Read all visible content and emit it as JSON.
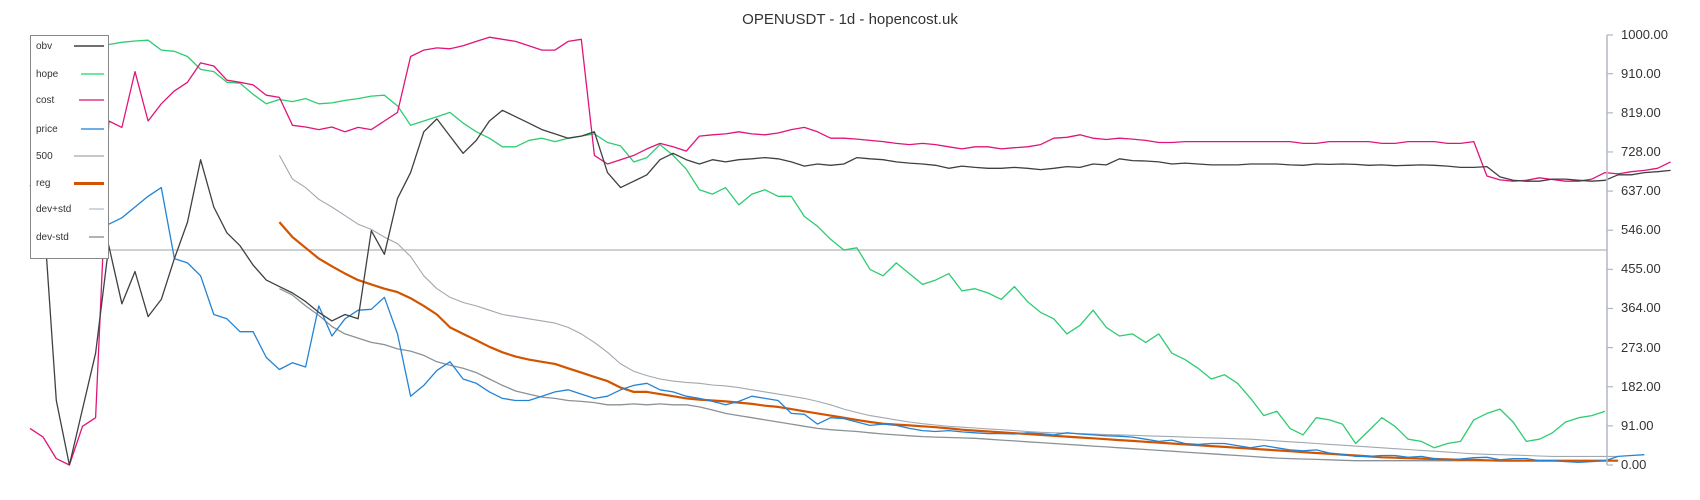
{
  "title": "OPENUSDT - 1d - hopencost.uk",
  "colors": {
    "obv": "#404040",
    "hope": "#2ecc71",
    "cost": "#e0157a",
    "price": "#2583d6",
    "500": "#c0c0c0",
    "reg": "#d35400",
    "dev_plus_std": "#a0a8b0",
    "dev_minus_std": "#8a9298",
    "axis": "#b0b8bf"
  },
  "legend": [
    {
      "key": "obv",
      "label": "obv",
      "color": "#707070",
      "width": 1.5,
      "line": 50
    },
    {
      "key": "hope",
      "label": "hope",
      "color": "#6ee7a0",
      "width": 2,
      "line": 38
    },
    {
      "key": "cost",
      "label": "cost",
      "color": "#e86aa8",
      "width": 2,
      "line": 42
    },
    {
      "key": "price",
      "label": "price",
      "color": "#6eaee8",
      "width": 2,
      "line": 38
    },
    {
      "key": "500",
      "label": "500",
      "color": "#c8c8c8",
      "width": 2,
      "line": 50
    },
    {
      "key": "reg",
      "label": "reg",
      "color": "#d35400",
      "width": 2.5,
      "line": 50
    },
    {
      "key": "dev_plus_std",
      "label": "dev+std",
      "color": "#d0d6da",
      "width": 2,
      "line": 25
    },
    {
      "key": "dev_minus_std",
      "label": "dev-std",
      "color": "#aab4ba",
      "width": 2,
      "line": 25
    }
  ],
  "axis": {
    "y_ticks": [
      "1000.00",
      "910.00",
      "819.00",
      "728.00",
      "637.00",
      "546.00",
      "455.00",
      "364.00",
      "273.00",
      "182.00",
      "91.00",
      "0.00"
    ],
    "y_tick_values": [
      1000,
      910,
      819,
      728,
      637,
      546,
      455,
      364,
      273,
      182,
      91,
      0
    ]
  },
  "chart_data": {
    "type": "line",
    "title": "OPENUSDT - 1d - hopencost.uk",
    "xlabel": "",
    "ylabel": "",
    "ylim": [
      0,
      1000
    ],
    "y_axis_position": "right",
    "grid": false,
    "legend_position": "top-left",
    "x": "daily index 0..120",
    "series": [
      {
        "name": "obv",
        "start_index": 0,
        "values": [
          650,
          600,
          150,
          0,
          130,
          260,
          510,
          375,
          450,
          345,
          385,
          480,
          565,
          710,
          600,
          540,
          510,
          465,
          430,
          415,
          400,
          380,
          355,
          335,
          350,
          340,
          545,
          490,
          620,
          680,
          775,
          805,
          765,
          725,
          755,
          800,
          825,
          810,
          795,
          780,
          770,
          760,
          765,
          775,
          680,
          645,
          660,
          675,
          710,
          725,
          710,
          700,
          710,
          705,
          710,
          712,
          715,
          712,
          705,
          695,
          700,
          697,
          700,
          715,
          712,
          710,
          705,
          702,
          700,
          697,
          690,
          695,
          692,
          690,
          690,
          692,
          690,
          687,
          690,
          694,
          692,
          700,
          698,
          712,
          708,
          707,
          705,
          700,
          702,
          700,
          698,
          698,
          698,
          700,
          700,
          700,
          698,
          697,
          700,
          699,
          700,
          699,
          697,
          698,
          696,
          697,
          698,
          697,
          695,
          692,
          692,
          694,
          670,
          662,
          660,
          660,
          665,
          665,
          662,
          660,
          662,
          675,
          675,
          680,
          682,
          685
        ]
      },
      {
        "name": "hope",
        "start_index": 0,
        "values": [
          990,
          975,
          975,
          975,
          975,
          975,
          978,
          983,
          986,
          988,
          965,
          962,
          950,
          920,
          915,
          890,
          888,
          862,
          840,
          850,
          845,
          852,
          840,
          842,
          848,
          852,
          858,
          860,
          835,
          790,
          800,
          810,
          820,
          795,
          775,
          760,
          740,
          740,
          755,
          760,
          752,
          760,
          765,
          770,
          750,
          742,
          705,
          715,
          745,
          720,
          688,
          640,
          630,
          645,
          605,
          630,
          640,
          625,
          625,
          578,
          555,
          525,
          500,
          505,
          455,
          440,
          470,
          445,
          420,
          430,
          445,
          405,
          410,
          400,
          385,
          415,
          380,
          355,
          340,
          305,
          325,
          360,
          320,
          300,
          305,
          285,
          305,
          260,
          245,
          225,
          200,
          210,
          190,
          155,
          115,
          125,
          85,
          70,
          110,
          105,
          95,
          50,
          80,
          110,
          90,
          60,
          55,
          40,
          50,
          55,
          105,
          120,
          130,
          100,
          55,
          60,
          75,
          100,
          110,
          115,
          125
        ]
      },
      {
        "name": "cost",
        "start_index": 0,
        "values": [
          85,
          65,
          15,
          0,
          90,
          110,
          800,
          785,
          915,
          800,
          840,
          870,
          890,
          935,
          928,
          895,
          890,
          884,
          860,
          855,
          790,
          786,
          780,
          786,
          775,
          785,
          780,
          800,
          820,
          950,
          965,
          970,
          968,
          975,
          985,
          995,
          990,
          985,
          975,
          965,
          965,
          985,
          990,
          720,
          700,
          710,
          720,
          735,
          748,
          740,
          730,
          765,
          768,
          770,
          775,
          770,
          768,
          772,
          780,
          785,
          775,
          760,
          760,
          758,
          755,
          752,
          748,
          745,
          748,
          745,
          740,
          735,
          740,
          740,
          735,
          738,
          740,
          745,
          760,
          762,
          768,
          760,
          757,
          760,
          758,
          755,
          750,
          750,
          752,
          752,
          752,
          752,
          752,
          752,
          752,
          752,
          752,
          748,
          748,
          752,
          752,
          752,
          752,
          748,
          748,
          752,
          752,
          752,
          748,
          748,
          752,
          672,
          663,
          660,
          662,
          668,
          664,
          660,
          660,
          665,
          680,
          677,
          682,
          685,
          690,
          705
        ]
      },
      {
        "name": "price",
        "start_index": 0,
        "values": [
          640,
          660,
          575,
          560,
          548,
          552,
          560,
          575,
          600,
          625,
          645,
          480,
          470,
          440,
          350,
          340,
          310,
          310,
          250,
          222,
          238,
          228,
          370,
          300,
          340,
          360,
          362,
          390,
          305,
          160,
          185,
          220,
          240,
          200,
          190,
          170,
          155,
          150,
          150,
          160,
          170,
          175,
          165,
          155,
          160,
          175,
          185,
          190,
          175,
          170,
          160,
          155,
          148,
          140,
          148,
          160,
          155,
          150,
          120,
          118,
          95,
          110,
          108,
          100,
          92,
          95,
          92,
          85,
          80,
          78,
          80,
          77,
          75,
          73,
          73,
          72,
          75,
          73,
          70,
          75,
          72,
          70,
          68,
          67,
          65,
          60,
          55,
          58,
          50,
          48,
          50,
          50,
          45,
          40,
          45,
          40,
          35,
          33,
          35,
          28,
          25,
          20,
          20,
          22,
          22,
          18,
          20,
          15,
          12,
          14,
          17,
          18,
          12,
          15,
          15,
          10,
          10,
          8,
          6,
          8,
          10,
          20,
          22,
          24
        ]
      },
      {
        "name": "500",
        "start_index": 0,
        "values": "constant 500"
      },
      {
        "name": "reg",
        "start_index": 19,
        "values": [
          565,
          530,
          505,
          480,
          462,
          445,
          430,
          420,
          410,
          402,
          388,
          370,
          350,
          320,
          305,
          290,
          275,
          262,
          252,
          245,
          240,
          235,
          225,
          215,
          205,
          195,
          180,
          170,
          170,
          165,
          160,
          155,
          152,
          150,
          148,
          145,
          142,
          138,
          135,
          130,
          125,
          120,
          115,
          110,
          105,
          100,
          96,
          94,
          92,
          90,
          88,
          85,
          82,
          80,
          78,
          76,
          74,
          72,
          70,
          68,
          66,
          64,
          62,
          60,
          58,
          56,
          54,
          52,
          50,
          48,
          46,
          44,
          42,
          40,
          38,
          36,
          34,
          32,
          30,
          28,
          26,
          24,
          22,
          20,
          18,
          17,
          16,
          15,
          14,
          13,
          12,
          12,
          11,
          10,
          10,
          10,
          10,
          10,
          10,
          10,
          10,
          10,
          10
        ]
      },
      {
        "name": "dev+std",
        "start_index": 19,
        "values": [
          720,
          665,
          645,
          618,
          600,
          580,
          560,
          548,
          530,
          515,
          485,
          440,
          410,
          390,
          378,
          370,
          360,
          350,
          345,
          340,
          335,
          330,
          320,
          305,
          285,
          262,
          235,
          218,
          208,
          200,
          195,
          192,
          190,
          186,
          184,
          180,
          175,
          170,
          165,
          160,
          155,
          148,
          140,
          130,
          122,
          115,
          110,
          105,
          100,
          96,
          93,
          90,
          88,
          86,
          84,
          82,
          80,
          78,
          76,
          75,
          74,
          73,
          72,
          71,
          70,
          69,
          68,
          67,
          66,
          65,
          64,
          63,
          62,
          61,
          60,
          58,
          56,
          54,
          52,
          50,
          48,
          46,
          44,
          42,
          40,
          38,
          36,
          34,
          32,
          30,
          28,
          26,
          25,
          24,
          23,
          22,
          21,
          20,
          20,
          20,
          20,
          20,
          20
        ]
      },
      {
        "name": "dev-std",
        "start_index": 19,
        "values": [
          410,
          395,
          370,
          348,
          322,
          305,
          295,
          285,
          280,
          270,
          265,
          255,
          240,
          232,
          225,
          215,
          200,
          185,
          172,
          165,
          158,
          155,
          150,
          148,
          145,
          140,
          140,
          142,
          140,
          142,
          140,
          140,
          135,
          128,
          120,
          115,
          110,
          105,
          100,
          95,
          90,
          85,
          82,
          80,
          78,
          75,
          72,
          70,
          68,
          66,
          65,
          64,
          63,
          62,
          60,
          58,
          56,
          54,
          52,
          50,
          48,
          46,
          44,
          42,
          40,
          38,
          36,
          34,
          32,
          30,
          28,
          26,
          24,
          22,
          20,
          18,
          16,
          15,
          14,
          13,
          12,
          11,
          10,
          10,
          10,
          10,
          10,
          10,
          10,
          10,
          10,
          10,
          10,
          10,
          10,
          10,
          10,
          10,
          10,
          10,
          10,
          10,
          10
        ]
      }
    ]
  }
}
